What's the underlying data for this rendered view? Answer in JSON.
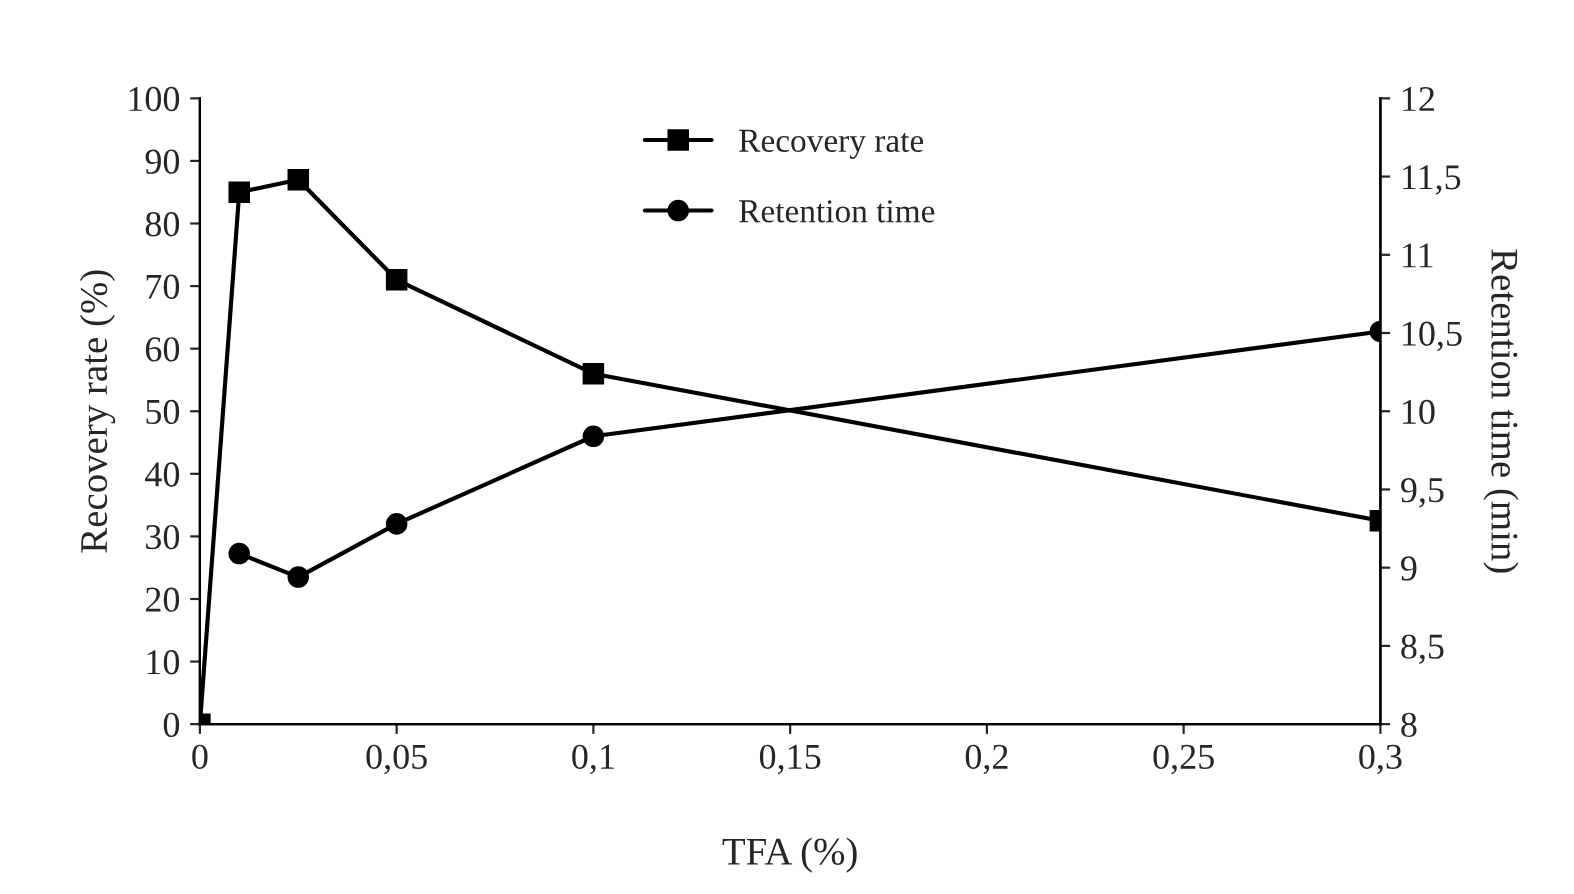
{
  "chart_data": {
    "type": "line",
    "xlabel": "TFA (%)",
    "ylabel": "Recovery rate (%)",
    "y2label": "Retention time (min)",
    "x": [
      0,
      0.01,
      0.025,
      0.05,
      0.1,
      0.3
    ],
    "series": [
      {
        "name": "Recovery rate",
        "color": "#000000",
        "marker": "square",
        "values": [
          0,
          85,
          87,
          71,
          56,
          32.5
        ]
      },
      {
        "name": "Retention time",
        "color": "#000000",
        "marker": "circle",
        "axis": "y2",
        "x": [
          0.01,
          0.025,
          0.05,
          0.1,
          0.3
        ],
        "values": [
          9.09,
          8.94,
          9.28,
          9.84,
          10.51
        ]
      }
    ],
    "xlim": [
      0,
      0.3
    ],
    "xticks": [
      {
        "value": 0,
        "label": "0"
      },
      {
        "value": 0.05,
        "label": "0,05"
      },
      {
        "value": 0.1,
        "label": "0,1"
      },
      {
        "value": 0.15,
        "label": "0,15"
      },
      {
        "value": 0.2,
        "label": "0,2"
      },
      {
        "value": 0.25,
        "label": "0,25"
      },
      {
        "value": 0.3,
        "label": "0,3"
      }
    ],
    "ylim": [
      0,
      100
    ],
    "yticks": [
      0,
      10,
      20,
      30,
      40,
      50,
      60,
      70,
      80,
      90,
      100
    ],
    "y2lim": [
      8,
      12
    ],
    "y2ticks": [
      8,
      {
        "value": 8.5,
        "label": "8,5"
      },
      9,
      {
        "value": 9.5,
        "label": "9,5"
      },
      10,
      {
        "value": 10.5,
        "label": "10,5"
      },
      11,
      {
        "value": 11.5,
        "label": "11,5"
      },
      12
    ],
    "legend": "top",
    "grid": false,
    "line_style": "solid"
  }
}
